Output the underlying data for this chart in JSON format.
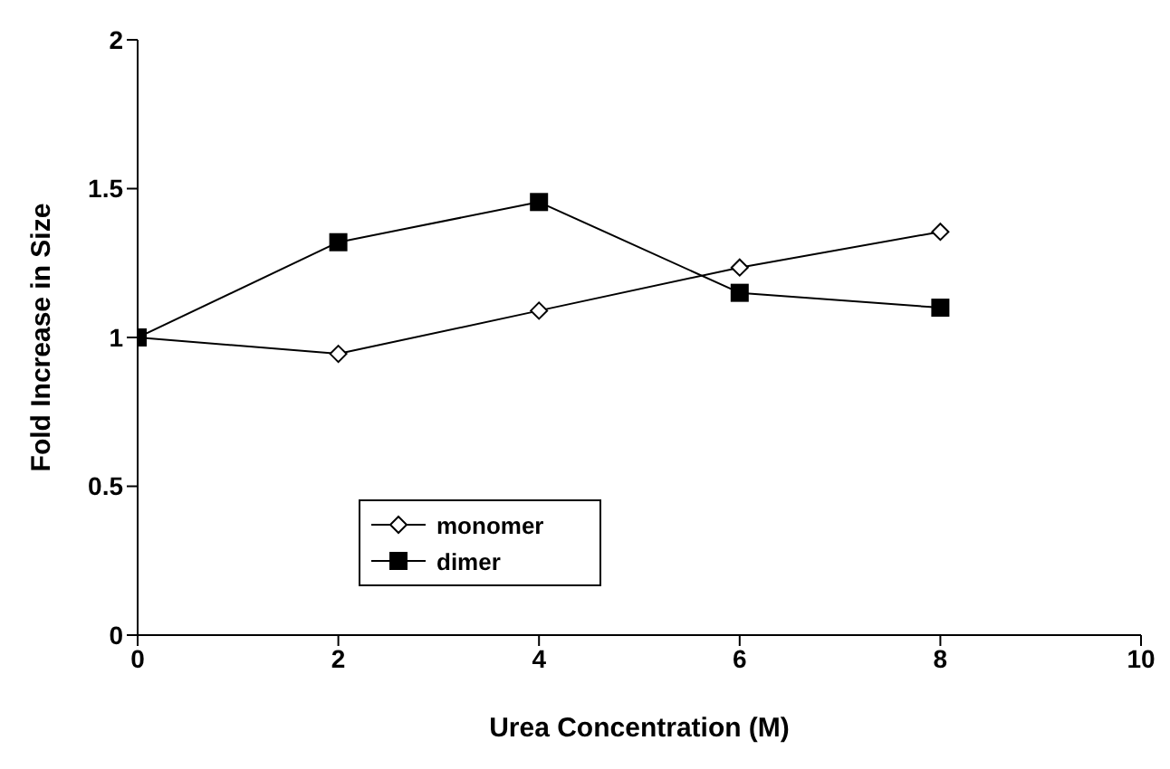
{
  "chart_data": {
    "type": "line",
    "xlabel": "Urea Concentration (M)",
    "ylabel": "Fold Increase in Size",
    "x": [
      0,
      2,
      4,
      6,
      8
    ],
    "series": [
      {
        "name": "monomer",
        "color": "#000000",
        "marker": "diamond",
        "values": [
          1,
          0.945,
          1.09,
          1.235,
          1.355
        ]
      },
      {
        "name": "dimer",
        "color": "#000000",
        "marker": "square",
        "values": [
          1,
          1.32,
          1.455,
          1.15,
          1.1
        ]
      }
    ],
    "xlim": [
      0,
      10
    ],
    "xticks": [
      0,
      2,
      4,
      6,
      8,
      10
    ],
    "ylim": [
      0,
      2
    ],
    "yticks": [
      0,
      0.5,
      1,
      1.5,
      2
    ],
    "grid": false,
    "legend": "bottom"
  }
}
